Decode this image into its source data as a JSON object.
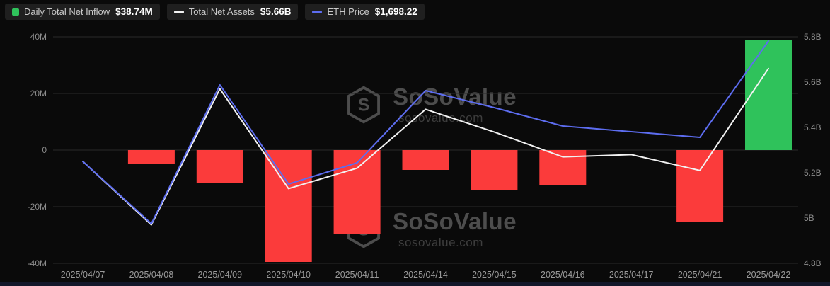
{
  "legend": {
    "items": [
      {
        "label": "Daily Total Net Inflow",
        "value": "$38.74M",
        "color": "#2fc25b",
        "icon": "bar-swatch"
      },
      {
        "label": "Total Net Assets",
        "value": "$5.66B",
        "color": "#f2f2f2",
        "icon": "line-swatch"
      },
      {
        "label": "ETH Price",
        "value": "$1,698.22",
        "color": "#5d6df0",
        "icon": "line-swatch"
      }
    ]
  },
  "watermark": {
    "text": "SoSoValue",
    "subtext": "sosovalue.com"
  },
  "colors": {
    "background": "#0a0a0a",
    "grid": "#2a2a2a",
    "axis_text": "#8d8d8d",
    "x_label_text": "#9a9a9a",
    "bar_positive": "#2fc25b",
    "bar_negative": "#fb3b3b",
    "assets_line": "#f2f2f2",
    "eth_line": "#5d6df0"
  },
  "chart_data": {
    "type": "combo",
    "categories": [
      "2025/04/07",
      "2025/04/08",
      "2025/04/09",
      "2025/04/10",
      "2025/04/11",
      "2025/04/14",
      "2025/04/15",
      "2025/04/16",
      "2025/04/17",
      "2025/04/21",
      "2025/04/22"
    ],
    "series": [
      {
        "name": "Daily Total Net Inflow",
        "type": "bar",
        "axis": "left",
        "unit": "USD millions",
        "values": [
          0,
          -5,
          -11.5,
          -39.5,
          -29.5,
          -7,
          -14,
          -12.5,
          0,
          -25.5,
          38.74
        ],
        "positive_color": "#2fc25b",
        "negative_color": "#fb3b3b"
      },
      {
        "name": "Total Net Assets",
        "type": "line",
        "axis": "right",
        "unit": "USD billions",
        "values": [
          5.25,
          4.97,
          5.57,
          5.13,
          5.22,
          5.48,
          5.38,
          5.27,
          5.28,
          5.21,
          5.66
        ],
        "color": "#f2f2f2"
      },
      {
        "name": "ETH Price",
        "type": "line",
        "axis": "left",
        "unit": "left-axis equivalent (price axis hidden)",
        "values": [
          -4,
          -26,
          23,
          -12,
          -4.5,
          21,
          15,
          8.5,
          6.5,
          4.5,
          38.5
        ],
        "color": "#5d6df0",
        "last_value_usd": "$1,698.22"
      }
    ],
    "left_axis": {
      "tick_labels": [
        "40M",
        "20M",
        "0",
        "-20M",
        "-40M"
      ],
      "tick_values": [
        40,
        20,
        0,
        -20,
        -40
      ],
      "min": -40,
      "max": 40
    },
    "right_axis": {
      "tick_labels": [
        "5.8B",
        "5.6B",
        "5.4B",
        "5.2B",
        "5B",
        "4.8B"
      ],
      "tick_values": [
        5.8,
        5.6,
        5.4,
        5.2,
        5,
        4.8
      ],
      "min": 4.8,
      "max": 5.8
    },
    "grid": true,
    "legend_position": "top-left"
  }
}
